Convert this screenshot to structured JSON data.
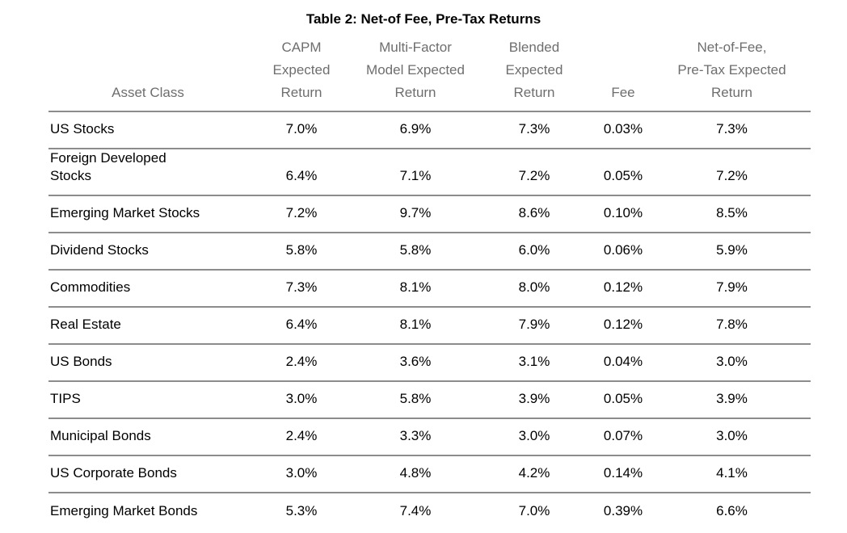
{
  "title": "Table 2: Net-of Fee, Pre-Tax Returns",
  "colors": {
    "background": "#ffffff",
    "title_text": "#000000",
    "header_text": "#6e6e6e",
    "body_text": "#000000",
    "rule": "#8c8c8c"
  },
  "table": {
    "columns": [
      {
        "label": "Asset Class"
      },
      {
        "label": "CAPM\nExpected\nReturn"
      },
      {
        "label": "Multi-Factor\nModel Expected\nReturn"
      },
      {
        "label": "Blended\nExpected\nReturn"
      },
      {
        "label": "Fee"
      },
      {
        "label": "Net-of-Fee,\nPre-Tax Expected\nReturn"
      }
    ],
    "rows": [
      {
        "asset_class": "US Stocks",
        "capm": "7.0%",
        "multi_factor": "6.9%",
        "blended": "7.3%",
        "fee": "0.03%",
        "net_of_fee": "7.3%"
      },
      {
        "asset_class": "Foreign Developed\nStocks",
        "capm": "6.4%",
        "multi_factor": "7.1%",
        "blended": "7.2%",
        "fee": "0.05%",
        "net_of_fee": "7.2%"
      },
      {
        "asset_class": "Emerging Market Stocks",
        "capm": "7.2%",
        "multi_factor": "9.7%",
        "blended": "8.6%",
        "fee": "0.10%",
        "net_of_fee": "8.5%"
      },
      {
        "asset_class": "Dividend Stocks",
        "capm": "5.8%",
        "multi_factor": "5.8%",
        "blended": "6.0%",
        "fee": "0.06%",
        "net_of_fee": "5.9%"
      },
      {
        "asset_class": "Commodities",
        "capm": "7.3%",
        "multi_factor": "8.1%",
        "blended": "8.0%",
        "fee": "0.12%",
        "net_of_fee": "7.9%"
      },
      {
        "asset_class": "Real Estate",
        "capm": "6.4%",
        "multi_factor": "8.1%",
        "blended": "7.9%",
        "fee": "0.12%",
        "net_of_fee": "7.8%"
      },
      {
        "asset_class": "US Bonds",
        "capm": "2.4%",
        "multi_factor": "3.6%",
        "blended": "3.1%",
        "fee": "0.04%",
        "net_of_fee": "3.0%"
      },
      {
        "asset_class": "TIPS",
        "capm": "3.0%",
        "multi_factor": "5.8%",
        "blended": "3.9%",
        "fee": "0.05%",
        "net_of_fee": "3.9%"
      },
      {
        "asset_class": "Municipal Bonds",
        "capm": "2.4%",
        "multi_factor": "3.3%",
        "blended": "3.0%",
        "fee": "0.07%",
        "net_of_fee": "3.0%"
      },
      {
        "asset_class": "US Corporate Bonds",
        "capm": "3.0%",
        "multi_factor": "4.8%",
        "blended": "4.2%",
        "fee": "0.14%",
        "net_of_fee": "4.1%"
      },
      {
        "asset_class": "Emerging Market Bonds",
        "capm": "5.3%",
        "multi_factor": "7.4%",
        "blended": "7.0%",
        "fee": "0.39%",
        "net_of_fee": "6.6%"
      }
    ]
  },
  "chart_data": {
    "type": "table",
    "title": "Table 2: Net-of Fee, Pre-Tax Returns",
    "columns": [
      "Asset Class",
      "CAPM Expected Return",
      "Multi-Factor Model Expected Return",
      "Blended Expected Return",
      "Fee",
      "Net-of-Fee, Pre-Tax Expected Return"
    ],
    "rows": [
      [
        "US Stocks",
        "7.0%",
        "6.9%",
        "7.3%",
        "0.03%",
        "7.3%"
      ],
      [
        "Foreign Developed Stocks",
        "6.4%",
        "7.1%",
        "7.2%",
        "0.05%",
        "7.2%"
      ],
      [
        "Emerging Market Stocks",
        "7.2%",
        "9.7%",
        "8.6%",
        "0.10%",
        "8.5%"
      ],
      [
        "Dividend Stocks",
        "5.8%",
        "5.8%",
        "6.0%",
        "0.06%",
        "5.9%"
      ],
      [
        "Commodities",
        "7.3%",
        "8.1%",
        "8.0%",
        "0.12%",
        "7.9%"
      ],
      [
        "Real Estate",
        "6.4%",
        "8.1%",
        "7.9%",
        "0.12%",
        "7.8%"
      ],
      [
        "US Bonds",
        "2.4%",
        "3.6%",
        "3.1%",
        "0.04%",
        "3.0%"
      ],
      [
        "TIPS",
        "3.0%",
        "5.8%",
        "3.9%",
        "0.05%",
        "3.9%"
      ],
      [
        "Municipal Bonds",
        "2.4%",
        "3.3%",
        "3.0%",
        "0.07%",
        "3.0%"
      ],
      [
        "US Corporate Bonds",
        "3.0%",
        "4.8%",
        "4.2%",
        "0.14%",
        "4.1%"
      ],
      [
        "Emerging Market Bonds",
        "5.3%",
        "7.4%",
        "7.0%",
        "0.39%",
        "6.6%"
      ]
    ]
  }
}
